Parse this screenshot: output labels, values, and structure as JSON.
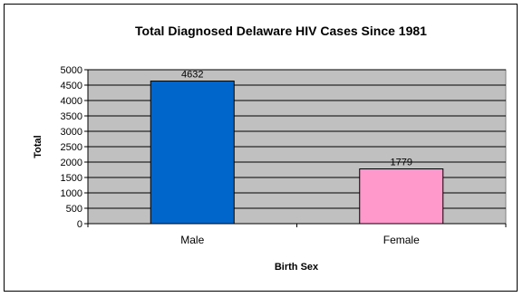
{
  "chart_data": {
    "type": "bar",
    "title": "Total Diagnosed Delaware HIV Cases Since 1981",
    "xlabel": "Birth Sex",
    "ylabel": "Total",
    "categories": [
      "Male",
      "Female"
    ],
    "values": [
      4632,
      1779
    ],
    "data_labels": [
      "4632",
      "1779"
    ],
    "bar_colors": [
      "#0066CC",
      "#FF99CC"
    ],
    "plot_background": "#C0C0C0",
    "ylim": [
      0,
      5000
    ],
    "ytick_step": 500,
    "yticks": [
      "0",
      "500",
      "1000",
      "1500",
      "2000",
      "2500",
      "3000",
      "3500",
      "4000",
      "4500",
      "5000"
    ],
    "grid": true,
    "legend": "none"
  }
}
